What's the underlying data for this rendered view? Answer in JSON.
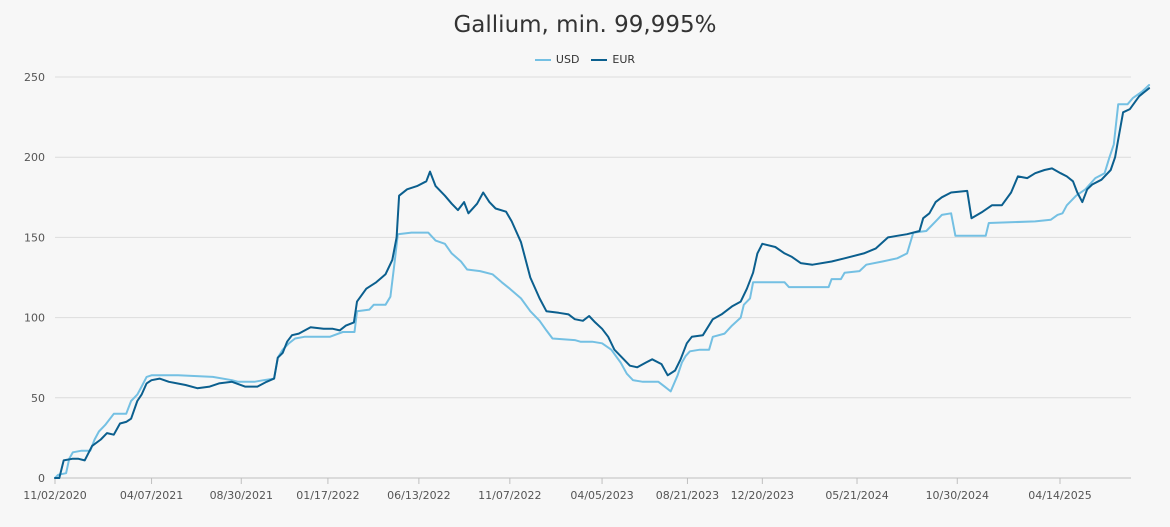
{
  "chart_data": {
    "type": "line",
    "title": "Gallium, min. 99,995%",
    "xlabel": "",
    "ylabel": "",
    "ylim": [
      0,
      250
    ],
    "yticks": [
      "0",
      "50",
      "100",
      "150",
      "200",
      "250"
    ],
    "xticks": [
      "11/02/2020",
      "04/07/2021",
      "08/30/2021",
      "01/17/2022",
      "06/13/2022",
      "11/07/2022",
      "04/05/2023",
      "08/21/2023",
      "12/20/2023",
      "05/21/2024",
      "10/30/2024",
      "04/14/2025"
    ],
    "grid": "horizontal",
    "legend_position": "top-center",
    "series": [
      {
        "name": "USD",
        "color": "#74c0e3",
        "points": [
          [
            "2020-11-02",
            0
          ],
          [
            "2020-11-07",
            2
          ],
          [
            "2020-11-20",
            3
          ],
          [
            "2020-11-25",
            12
          ],
          [
            "2020-12-01",
            16
          ],
          [
            "2020-12-15",
            17
          ],
          [
            "2020-12-29",
            17
          ],
          [
            "2021-01-05",
            24
          ],
          [
            "2021-01-12",
            29
          ],
          [
            "2021-01-22",
            33
          ],
          [
            "2021-02-05",
            40
          ],
          [
            "2021-02-25",
            40
          ],
          [
            "2021-03-05",
            48
          ],
          [
            "2021-03-15",
            52
          ],
          [
            "2021-03-22",
            57
          ],
          [
            "2021-03-30",
            63
          ],
          [
            "2021-04-07",
            64
          ],
          [
            "2021-05-20",
            64
          ],
          [
            "2021-07-15",
            63
          ],
          [
            "2021-08-15",
            61
          ],
          [
            "2021-08-25",
            60
          ],
          [
            "2021-09-20",
            60
          ],
          [
            "2021-10-05",
            61
          ],
          [
            "2021-10-22",
            62
          ],
          [
            "2021-10-28",
            75
          ],
          [
            "2021-11-05",
            80
          ],
          [
            "2021-11-15",
            84
          ],
          [
            "2021-11-25",
            87
          ],
          [
            "2021-12-10",
            88
          ],
          [
            "2022-01-20",
            88
          ],
          [
            "2022-02-10",
            91
          ],
          [
            "2022-03-01",
            91
          ],
          [
            "2022-03-05",
            104
          ],
          [
            "2022-03-25",
            105
          ],
          [
            "2022-04-01",
            108
          ],
          [
            "2022-04-20",
            108
          ],
          [
            "2022-04-28",
            113
          ],
          [
            "2022-05-05",
            135
          ],
          [
            "2022-05-10",
            152
          ],
          [
            "2022-06-01",
            153
          ],
          [
            "2022-06-28",
            153
          ],
          [
            "2022-07-10",
            148
          ],
          [
            "2022-07-25",
            146
          ],
          [
            "2022-08-05",
            140
          ],
          [
            "2022-08-20",
            135
          ],
          [
            "2022-08-30",
            130
          ],
          [
            "2022-09-20",
            129
          ],
          [
            "2022-10-10",
            127
          ],
          [
            "2022-10-25",
            122
          ],
          [
            "2022-11-07",
            118
          ],
          [
            "2022-11-25",
            112
          ],
          [
            "2022-12-10",
            104
          ],
          [
            "2022-12-25",
            98
          ],
          [
            "2023-01-05",
            92
          ],
          [
            "2023-01-15",
            87
          ],
          [
            "2023-02-20",
            86
          ],
          [
            "2023-03-01",
            85
          ],
          [
            "2023-03-20",
            85
          ],
          [
            "2023-04-05",
            84
          ],
          [
            "2023-04-20",
            80
          ],
          [
            "2023-05-05",
            72
          ],
          [
            "2023-05-15",
            65
          ],
          [
            "2023-05-25",
            61
          ],
          [
            "2023-06-10",
            60
          ],
          [
            "2023-07-05",
            60
          ],
          [
            "2023-07-15",
            57
          ],
          [
            "2023-07-25",
            54
          ],
          [
            "2023-08-05",
            64
          ],
          [
            "2023-08-12",
            72
          ],
          [
            "2023-08-18",
            76
          ],
          [
            "2023-08-25",
            79
          ],
          [
            "2023-09-10",
            80
          ],
          [
            "2023-09-25",
            80
          ],
          [
            "2023-10-01",
            88
          ],
          [
            "2023-10-20",
            90
          ],
          [
            "2023-11-01",
            95
          ],
          [
            "2023-11-15",
            100
          ],
          [
            "2023-11-20",
            108
          ],
          [
            "2023-11-30",
            112
          ],
          [
            "2023-12-05",
            122
          ],
          [
            "2024-01-25",
            122
          ],
          [
            "2024-02-01",
            119
          ],
          [
            "2024-04-05",
            119
          ],
          [
            "2024-04-10",
            124
          ],
          [
            "2024-04-25",
            124
          ],
          [
            "2024-05-01",
            128
          ],
          [
            "2024-05-25",
            129
          ],
          [
            "2024-06-05",
            133
          ],
          [
            "2024-07-01",
            135
          ],
          [
            "2024-07-25",
            137
          ],
          [
            "2024-08-10",
            140
          ],
          [
            "2024-08-20",
            153
          ],
          [
            "2024-09-10",
            154
          ],
          [
            "2024-09-25",
            160
          ],
          [
            "2024-10-05",
            164
          ],
          [
            "2024-10-20",
            165
          ],
          [
            "2024-10-27",
            151
          ],
          [
            "2024-12-15",
            151
          ],
          [
            "2024-12-20",
            159
          ],
          [
            "2025-03-05",
            160
          ],
          [
            "2025-03-30",
            161
          ],
          [
            "2025-04-10",
            164
          ],
          [
            "2025-04-18",
            165
          ],
          [
            "2025-04-25",
            170
          ],
          [
            "2025-05-10",
            176
          ],
          [
            "2025-05-25",
            180
          ],
          [
            "2025-06-10",
            187
          ],
          [
            "2025-06-25",
            190
          ],
          [
            "2025-07-03",
            200
          ],
          [
            "2025-07-10",
            208
          ],
          [
            "2025-07-17",
            233
          ],
          [
            "2025-08-01",
            233
          ],
          [
            "2025-08-10",
            237
          ],
          [
            "2025-08-25",
            241
          ],
          [
            "2025-09-05",
            245
          ]
        ]
      },
      {
        "name": "EUR",
        "color": "#0b5f8e",
        "points": [
          [
            "2020-11-02",
            0
          ],
          [
            "2020-11-09",
            0
          ],
          [
            "2020-11-16",
            11
          ],
          [
            "2020-11-30",
            12
          ],
          [
            "2020-12-10",
            12
          ],
          [
            "2020-12-20",
            11
          ],
          [
            "2021-01-01",
            20
          ],
          [
            "2021-01-15",
            24
          ],
          [
            "2021-01-25",
            28
          ],
          [
            "2021-02-05",
            27
          ],
          [
            "2021-02-15",
            34
          ],
          [
            "2021-02-25",
            35
          ],
          [
            "2021-03-05",
            37
          ],
          [
            "2021-03-15",
            48
          ],
          [
            "2021-03-22",
            52
          ],
          [
            "2021-03-30",
            59
          ],
          [
            "2021-04-07",
            61
          ],
          [
            "2021-04-20",
            62
          ],
          [
            "2021-05-05",
            60
          ],
          [
            "2021-06-01",
            58
          ],
          [
            "2021-06-20",
            56
          ],
          [
            "2021-07-10",
            57
          ],
          [
            "2021-07-25",
            59
          ],
          [
            "2021-08-15",
            60
          ],
          [
            "2021-09-05",
            57
          ],
          [
            "2021-09-25",
            57
          ],
          [
            "2021-10-10",
            60
          ],
          [
            "2021-10-22",
            62
          ],
          [
            "2021-10-28",
            75
          ],
          [
            "2021-11-05",
            78
          ],
          [
            "2021-11-12",
            85
          ],
          [
            "2021-11-20",
            89
          ],
          [
            "2021-12-01",
            90
          ],
          [
            "2021-12-20",
            94
          ],
          [
            "2022-01-10",
            93
          ],
          [
            "2022-01-25",
            93
          ],
          [
            "2022-02-05",
            92
          ],
          [
            "2022-02-15",
            95
          ],
          [
            "2022-02-28",
            97
          ],
          [
            "2022-03-05",
            110
          ],
          [
            "2022-03-20",
            118
          ],
          [
            "2022-04-05",
            122
          ],
          [
            "2022-04-20",
            127
          ],
          [
            "2022-05-01",
            136
          ],
          [
            "2022-05-08",
            150
          ],
          [
            "2022-05-12",
            176
          ],
          [
            "2022-05-25",
            180
          ],
          [
            "2022-06-10",
            182
          ],
          [
            "2022-06-25",
            185
          ],
          [
            "2022-07-01",
            191
          ],
          [
            "2022-07-10",
            182
          ],
          [
            "2022-07-25",
            176
          ],
          [
            "2022-08-05",
            171
          ],
          [
            "2022-08-15",
            167
          ],
          [
            "2022-08-25",
            172
          ],
          [
            "2022-09-01",
            165
          ],
          [
            "2022-09-15",
            171
          ],
          [
            "2022-09-25",
            178
          ],
          [
            "2022-10-05",
            172
          ],
          [
            "2022-10-15",
            168
          ],
          [
            "2022-11-01",
            166
          ],
          [
            "2022-11-10",
            160
          ],
          [
            "2022-11-25",
            147
          ],
          [
            "2022-12-10",
            125
          ],
          [
            "2022-12-25",
            112
          ],
          [
            "2023-01-05",
            104
          ],
          [
            "2023-01-25",
            103
          ],
          [
            "2023-02-10",
            102
          ],
          [
            "2023-02-20",
            99
          ],
          [
            "2023-03-05",
            98
          ],
          [
            "2023-03-15",
            101
          ],
          [
            "2023-03-25",
            97
          ],
          [
            "2023-04-05",
            93
          ],
          [
            "2023-04-15",
            88
          ],
          [
            "2023-04-25",
            80
          ],
          [
            "2023-05-05",
            76
          ],
          [
            "2023-05-20",
            70
          ],
          [
            "2023-06-01",
            69
          ],
          [
            "2023-06-15",
            72
          ],
          [
            "2023-06-25",
            74
          ],
          [
            "2023-07-10",
            71
          ],
          [
            "2023-07-20",
            64
          ],
          [
            "2023-08-01",
            67
          ],
          [
            "2023-08-10",
            74
          ],
          [
            "2023-08-20",
            84
          ],
          [
            "2023-08-28",
            88
          ],
          [
            "2023-09-15",
            89
          ],
          [
            "2023-10-01",
            99
          ],
          [
            "2023-10-15",
            102
          ],
          [
            "2023-11-01",
            107
          ],
          [
            "2023-11-15",
            110
          ],
          [
            "2023-11-25",
            118
          ],
          [
            "2023-12-05",
            128
          ],
          [
            "2023-12-12",
            140
          ],
          [
            "2023-12-20",
            146
          ],
          [
            "2024-01-10",
            144
          ],
          [
            "2024-01-25",
            140
          ],
          [
            "2024-02-05",
            138
          ],
          [
            "2024-02-20",
            134
          ],
          [
            "2024-03-10",
            133
          ],
          [
            "2024-04-10",
            135
          ],
          [
            "2024-05-01",
            137
          ],
          [
            "2024-06-01",
            140
          ],
          [
            "2024-06-20",
            143
          ],
          [
            "2024-07-10",
            150
          ],
          [
            "2024-07-25",
            151
          ],
          [
            "2024-08-10",
            152
          ],
          [
            "2024-08-30",
            154
          ],
          [
            "2024-09-05",
            162
          ],
          [
            "2024-09-15",
            165
          ],
          [
            "2024-09-25",
            172
          ],
          [
            "2024-10-05",
            175
          ],
          [
            "2024-10-20",
            178
          ],
          [
            "2024-11-15",
            179
          ],
          [
            "2024-11-22",
            162
          ],
          [
            "2024-12-10",
            166
          ],
          [
            "2024-12-25",
            170
          ],
          [
            "2025-01-10",
            170
          ],
          [
            "2025-01-25",
            178
          ],
          [
            "2025-02-05",
            188
          ],
          [
            "2025-02-20",
            187
          ],
          [
            "2025-03-05",
            190
          ],
          [
            "2025-03-20",
            192
          ],
          [
            "2025-04-01",
            193
          ],
          [
            "2025-04-15",
            190
          ],
          [
            "2025-04-25",
            188
          ],
          [
            "2025-05-05",
            185
          ],
          [
            "2025-05-12",
            178
          ],
          [
            "2025-05-20",
            172
          ],
          [
            "2025-05-28",
            180
          ],
          [
            "2025-06-05",
            183
          ],
          [
            "2025-06-20",
            186
          ],
          [
            "2025-07-05",
            192
          ],
          [
            "2025-07-12",
            200
          ],
          [
            "2025-07-17",
            211
          ],
          [
            "2025-07-25",
            228
          ],
          [
            "2025-08-05",
            230
          ],
          [
            "2025-08-20",
            238
          ],
          [
            "2025-09-05",
            243
          ]
        ]
      }
    ]
  }
}
